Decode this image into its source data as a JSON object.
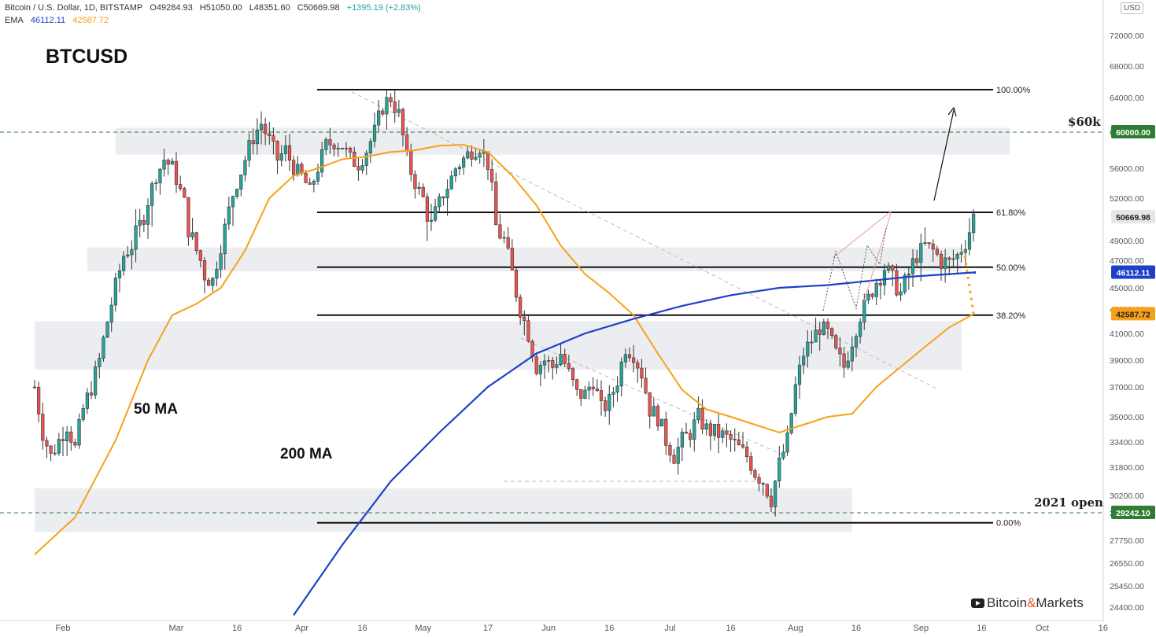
{
  "header": {
    "symbol": "Bitcoin / U.S. Dollar, 1D, BITSTAMP",
    "open": "O49284.93",
    "high": "H51050.00",
    "low": "L48351.60",
    "close": "C50669.98",
    "change": "+1395.19 (+2.83%)",
    "ema_label": "EMA",
    "ema_200": "46112.11",
    "ema_50": "42587.72"
  },
  "title": "BTCUSD",
  "currency_badge": "USD",
  "brand": {
    "name_a": "Bitcoin",
    "amp": "&",
    "name_b": "Markets"
  },
  "annotations": {
    "ma50_label": "50 MA",
    "ma200_label": "200 MA",
    "level_60k": "$60k",
    "level_2021_open": "2021 open"
  },
  "colors": {
    "up": "#26a69a",
    "down": "#ef5350",
    "ma50": "#f7a11a",
    "ma200": "#1e40c8",
    "level_green": "#2e7d32",
    "zone": "#ebedf0"
  },
  "chart_data": {
    "type": "candlestick",
    "ylim": [
      23800,
      76000
    ],
    "y_ticks": [
      72000,
      68000,
      64000,
      60000,
      56000,
      52000,
      49000,
      47000,
      45000,
      43000,
      41000,
      39000,
      37000,
      35000,
      33400,
      31800,
      30200,
      29242,
      27750,
      26550,
      25450,
      24400
    ],
    "y_tick_labels": [
      "72000.00",
      "68000.00",
      "64000.00",
      "60000.00",
      "56000.00",
      "52000.00",
      "49000.00",
      "47000.00",
      "45000.00",
      "43000.00",
      "41000.00",
      "39000.00",
      "37000.00",
      "35000.00",
      "33400.00",
      "31800.00",
      "30200.00",
      "29242.10",
      "27750.00",
      "26550.00",
      "25450.00",
      "24400.00"
    ],
    "x_ticks": [
      "Feb",
      "Mar",
      "16",
      "Apr",
      "16",
      "May",
      "17",
      "Jun",
      "16",
      "Jul",
      "16",
      "Aug",
      "16",
      "Sep",
      "16",
      "Oct",
      "16"
    ],
    "x_tick_days": [
      1,
      29,
      44,
      60,
      75,
      90,
      106,
      121,
      136,
      151,
      166,
      182,
      197,
      213,
      228,
      243,
      258
    ],
    "fib_levels": [
      {
        "label": "100.00%",
        "price": 65000
      },
      {
        "label": "61.80%",
        "price": 51000
      },
      {
        "label": "50.00%",
        "price": 46500
      },
      {
        "label": "38.20%",
        "price": 42500
      },
      {
        "label": "0.00%",
        "price": 28700
      }
    ],
    "horizontal_levels": [
      {
        "label": "$60k",
        "price": 60000,
        "tag": "60000.00"
      },
      {
        "label": "2021 open",
        "price": 29242.1,
        "tag": "29242.10"
      }
    ],
    "last_price_tags": [
      {
        "price": 50669.98,
        "tag": "50669.98",
        "kind": "last"
      },
      {
        "price": 46112.11,
        "tag": "46112.11",
        "kind": "ma200"
      },
      {
        "price": 42587.72,
        "tag": "42587.72",
        "kind": "ma50"
      }
    ],
    "zones": [
      {
        "from_day": 14,
        "to_day": 235,
        "low": 57500,
        "high": 60500
      },
      {
        "from_day": 7,
        "to_day": 223,
        "low": 46200,
        "high": 48300
      },
      {
        "from_day": -6,
        "to_day": 223,
        "low": 38300,
        "high": 42000
      },
      {
        "from_day": -6,
        "to_day": 196,
        "low": 28200,
        "high": 30600
      }
    ],
    "candles_anchor": [
      [
        -6,
        37000
      ],
      [
        -4,
        34000
      ],
      [
        -2,
        32500
      ],
      [
        0,
        33500
      ],
      [
        2,
        34500
      ],
      [
        4,
        33000
      ],
      [
        6,
        35500
      ],
      [
        8,
        37000
      ],
      [
        10,
        39000
      ],
      [
        12,
        42000
      ],
      [
        14,
        45000
      ],
      [
        16,
        47500
      ],
      [
        18,
        48500
      ],
      [
        20,
        50000
      ],
      [
        22,
        52000
      ],
      [
        24,
        55000
      ],
      [
        26,
        57000
      ],
      [
        28,
        56000
      ],
      [
        30,
        53000
      ],
      [
        32,
        50000
      ],
      [
        34,
        48000
      ],
      [
        36,
        46000
      ],
      [
        38,
        45500
      ],
      [
        40,
        48500
      ],
      [
        42,
        51000
      ],
      [
        44,
        54000
      ],
      [
        46,
        57000
      ],
      [
        48,
        59500
      ],
      [
        50,
        61000
      ],
      [
        52,
        59000
      ],
      [
        54,
        57000
      ],
      [
        56,
        58000
      ],
      [
        58,
        56000
      ],
      [
        60,
        55000
      ],
      [
        62,
        53000
      ],
      [
        64,
        56000
      ],
      [
        66,
        58500
      ],
      [
        68,
        59000
      ],
      [
        70,
        58500
      ],
      [
        72,
        57000
      ],
      [
        74,
        56500
      ],
      [
        76,
        58000
      ],
      [
        78,
        60000
      ],
      [
        80,
        63000
      ],
      [
        82,
        64000
      ],
      [
        84,
        62000
      ],
      [
        86,
        57000
      ],
      [
        88,
        54000
      ],
      [
        90,
        52000
      ],
      [
        92,
        50000
      ],
      [
        94,
        51500
      ],
      [
        96,
        53500
      ],
      [
        98,
        56000
      ],
      [
        100,
        57000
      ],
      [
        102,
        58000
      ],
      [
        104,
        58500
      ],
      [
        106,
        56500
      ],
      [
        108,
        50000
      ],
      [
        110,
        49000
      ],
      [
        112,
        46000
      ],
      [
        114,
        43000
      ],
      [
        116,
        41000
      ],
      [
        118,
        38500
      ],
      [
        120,
        39000
      ],
      [
        122,
        38500
      ],
      [
        124,
        39500
      ],
      [
        126,
        38000
      ],
      [
        128,
        36500
      ],
      [
        130,
        36500
      ],
      [
        132,
        37500
      ],
      [
        134,
        35500
      ],
      [
        136,
        36000
      ],
      [
        138,
        37500
      ],
      [
        140,
        40000
      ],
      [
        142,
        39500
      ],
      [
        144,
        38000
      ],
      [
        146,
        35500
      ],
      [
        148,
        35000
      ],
      [
        150,
        33500
      ],
      [
        152,
        32500
      ],
      [
        154,
        33500
      ],
      [
        156,
        34000
      ],
      [
        158,
        35000
      ],
      [
        160,
        34200
      ],
      [
        162,
        34000
      ],
      [
        164,
        33800
      ],
      [
        166,
        33500
      ],
      [
        168,
        33000
      ],
      [
        170,
        32500
      ],
      [
        172,
        31500
      ],
      [
        174,
        31000
      ],
      [
        176,
        30000
      ],
      [
        178,
        32000
      ],
      [
        180,
        33500
      ],
      [
        182,
        37000
      ],
      [
        184,
        39500
      ],
      [
        186,
        40500
      ],
      [
        188,
        41500
      ],
      [
        190,
        41000
      ],
      [
        192,
        39500
      ],
      [
        194,
        38500
      ],
      [
        196,
        40500
      ],
      [
        198,
        42500
      ],
      [
        200,
        44000
      ],
      [
        202,
        45500
      ],
      [
        204,
        46500
      ],
      [
        206,
        45500
      ],
      [
        208,
        44500
      ],
      [
        210,
        46000
      ],
      [
        212,
        47500
      ],
      [
        214,
        48500
      ],
      [
        216,
        48000
      ],
      [
        218,
        47000
      ],
      [
        220,
        46800
      ],
      [
        222,
        47500
      ],
      [
        224,
        48800
      ],
      [
        226,
        50669
      ]
    ],
    "ma50": [
      [
        -6,
        27000
      ],
      [
        4,
        29000
      ],
      [
        14,
        33500
      ],
      [
        22,
        39000
      ],
      [
        28,
        42500
      ],
      [
        34,
        43500
      ],
      [
        40,
        45000
      ],
      [
        46,
        48000
      ],
      [
        52,
        52000
      ],
      [
        58,
        55000
      ],
      [
        64,
        56000
      ],
      [
        70,
        57000
      ],
      [
        76,
        57300
      ],
      [
        82,
        57800
      ],
      [
        88,
        58000
      ],
      [
        94,
        58500
      ],
      [
        100,
        58600
      ],
      [
        106,
        57800
      ],
      [
        112,
        55000
      ],
      [
        118,
        51500
      ],
      [
        124,
        48500
      ],
      [
        130,
        46000
      ],
      [
        136,
        44500
      ],
      [
        142,
        42500
      ],
      [
        148,
        39500
      ],
      [
        154,
        36800
      ],
      [
        160,
        35500
      ],
      [
        166,
        35000
      ],
      [
        172,
        34500
      ],
      [
        178,
        34000
      ],
      [
        184,
        34500
      ],
      [
        190,
        35000
      ],
      [
        196,
        35200
      ],
      [
        202,
        37000
      ],
      [
        208,
        38500
      ],
      [
        214,
        40000
      ],
      [
        220,
        41500
      ],
      [
        226,
        42587
      ]
    ],
    "ma200": [
      [
        58,
        24000
      ],
      [
        70,
        27500
      ],
      [
        82,
        31000
      ],
      [
        94,
        34000
      ],
      [
        106,
        37000
      ],
      [
        118,
        39500
      ],
      [
        130,
        41000
      ],
      [
        142,
        42200
      ],
      [
        154,
        43300
      ],
      [
        166,
        44300
      ],
      [
        178,
        45000
      ],
      [
        190,
        45200
      ],
      [
        200,
        45500
      ],
      [
        210,
        45800
      ],
      [
        220,
        46000
      ],
      [
        226,
        46112
      ]
    ]
  }
}
